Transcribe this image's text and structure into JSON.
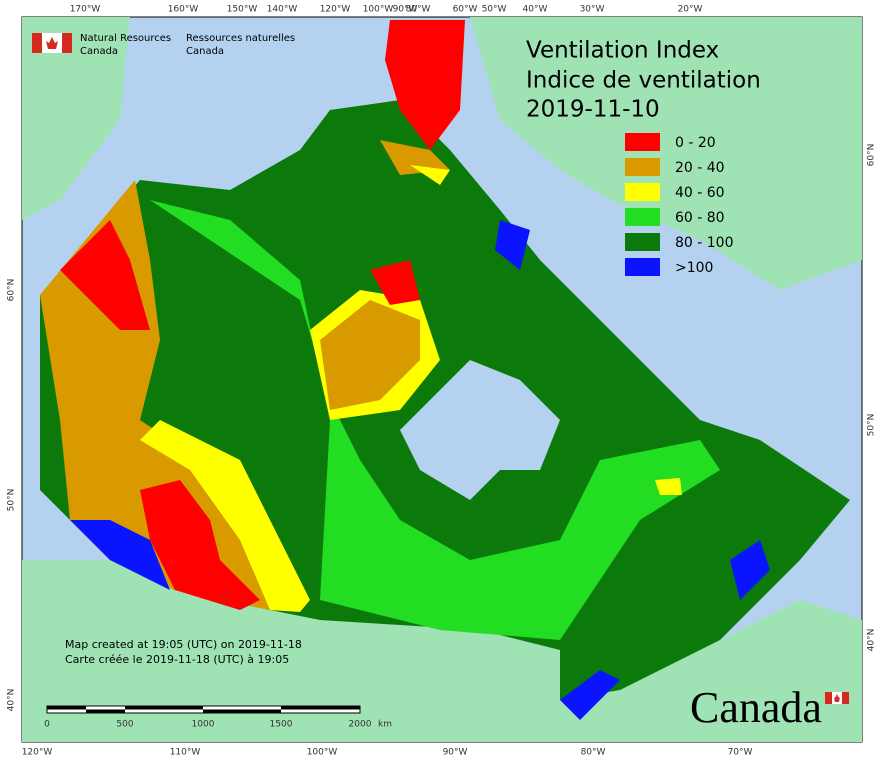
{
  "header": {
    "agency_en": "Natural Resources",
    "agency_en_2": "Canada",
    "agency_fr": "Ressources naturelles",
    "agency_fr_2": "Canada"
  },
  "title": {
    "line1": "Ventilation Index",
    "line2": "Indice de ventilation",
    "date": "2019-11-10"
  },
  "legend": [
    {
      "label": "0 - 20",
      "color": "#ff0000"
    },
    {
      "label": "20 - 40",
      "color": "#d99a00"
    },
    {
      "label": "40 - 60",
      "color": "#ffff00"
    },
    {
      "label": "60 - 80",
      "color": "#22dd22"
    },
    {
      "label": "80 - 100",
      "color": "#0b7a0b"
    },
    {
      "label": ">100",
      "color": "#0a14ff"
    }
  ],
  "graticule": {
    "top": [
      "170°W",
      "160°W",
      "150°W",
      "140°W",
      "120°W",
      "100°W",
      "90°W",
      "80°W",
      "60°W",
      "50°W",
      "40°W",
      "30°W",
      "20°W"
    ],
    "bottom": [
      "120°W",
      "110°W",
      "100°W",
      "90°W",
      "80°W",
      "70°W"
    ],
    "left": [
      "60°N",
      "50°N",
      "40°N"
    ],
    "right": [
      "60°N",
      "50°N",
      "40°N"
    ]
  },
  "notes": [
    "Map created at 19:05 (UTC) on 2019-11-18",
    "Carte créée le 2019-11-18 (UTC) à 19:05"
  ],
  "scale_bar": {
    "ticks": [
      "0",
      "500",
      "1000",
      "1500",
      "2000"
    ],
    "unit": "km"
  },
  "wordmark": "Canada"
}
